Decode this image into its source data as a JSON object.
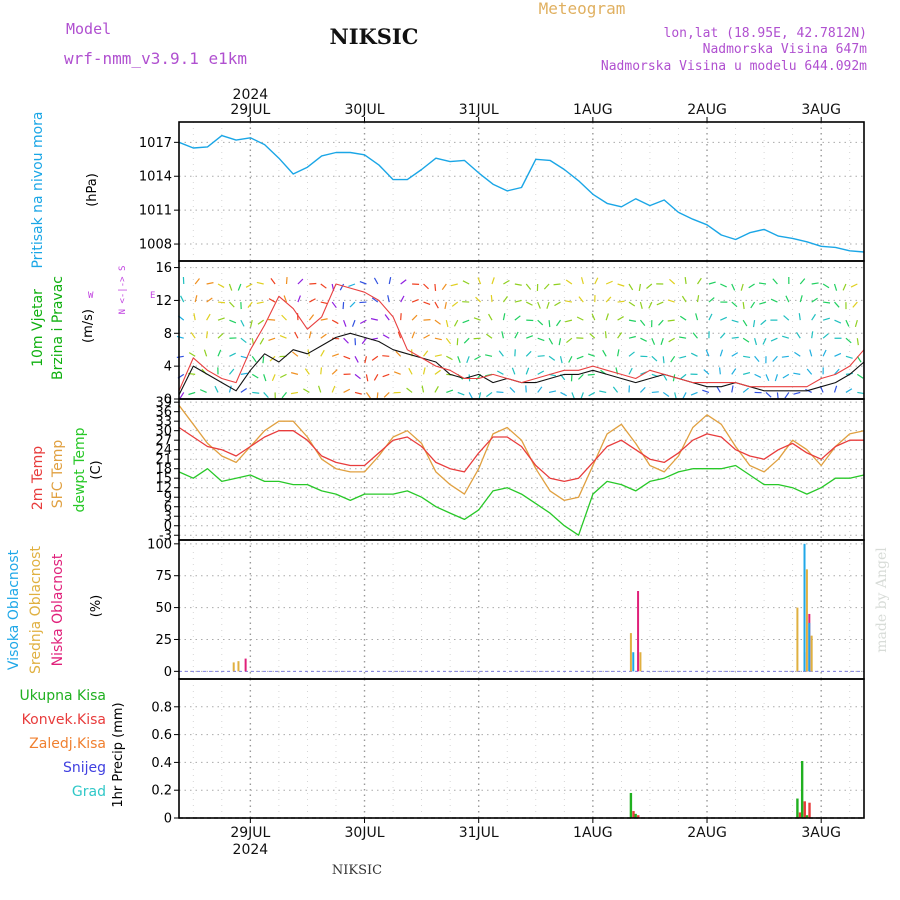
{
  "header": {
    "model_label": "Model",
    "model_name": "wrf-nmm_v3.9.1  e1km",
    "title": "NIKSIC",
    "meteogram_label": "Meteogram",
    "lonlat": "lon,lat (18.95E, 42.7812N)",
    "elevation": "Nadmorska Visina 647m",
    "model_elevation": "Nadmorska Visina u modelu 644.092m"
  },
  "footer": {
    "station": "NIKSIC",
    "credit": "made by Angel"
  },
  "time_axis": {
    "year": "2024",
    "days": [
      "29JUL",
      "30JUL",
      "31JUL",
      "1AUG",
      "2AUG",
      "3AUG"
    ],
    "range_hours": [
      -15,
      129
    ]
  },
  "colors": {
    "pressure": "#1aa6e6",
    "temp2m": "#e83c3c",
    "sfc_temp": "#e0a040",
    "dewpoint": "#28c828",
    "cloud_high": "#20a8e8",
    "cloud_mid": "#e0b040",
    "cloud_low": "#e0207a",
    "precip_total": "#20b020",
    "precip_conv": "#e83c3c",
    "precip_strat": "#f08030",
    "snow": "#4040e0",
    "graupel": "#30c8c8",
    "wind_label": "#10b010",
    "wind_dir_label": "#c040e0"
  },
  "panels": {
    "pressure": {
      "label": "Pritisak na nivou mora",
      "unit": "(hPa)",
      "ticks": [
        "1017",
        "1014",
        "1011",
        "1008"
      ]
    },
    "wind": {
      "label1": "10m Vjetar",
      "label2": "Brzina i Pravac",
      "unit": "(m/s)",
      "ticks": [
        "0",
        "4",
        "8",
        "12",
        "16"
      ],
      "compass_n": "N",
      "compass_s": "S",
      "compass_e": "E",
      "compass_w": "W"
    },
    "temperature": {
      "label_2m": "2m Temp",
      "label_sfc": "SFC Temp",
      "label_dew": "dewpt Temp",
      "unit": "(C)",
      "ticks": [
        "-3",
        "0",
        "3",
        "6",
        "9",
        "12",
        "15",
        "18",
        "21",
        "24",
        "27",
        "30",
        "33",
        "36",
        "39"
      ]
    },
    "clouds": {
      "label_high": "Visoka Oblacnost",
      "label_mid": "Srednja Oblacnost",
      "label_low": "Niska Oblacnost",
      "unit": "(%)",
      "ticks": [
        "0",
        "25",
        "50",
        "75",
        "100"
      ]
    },
    "precip": {
      "legend": [
        "Ukupna Kisa",
        "Konvek.Kisa",
        "Zaledj.Kisa",
        "Snijeg",
        "Grad"
      ],
      "unit": "1hr Precip (mm)",
      "ticks": [
        "0",
        "0.2",
        "0.4",
        "0.6",
        "0.8"
      ]
    }
  },
  "chart_data": [
    {
      "type": "line",
      "name": "pressure",
      "x": [
        -15,
        -12,
        -9,
        -6,
        -3,
        0,
        3,
        6,
        9,
        12,
        15,
        18,
        21,
        24,
        27,
        30,
        33,
        36,
        39,
        42,
        45,
        48,
        51,
        54,
        57,
        60,
        63,
        66,
        69,
        72,
        75,
        78,
        81,
        84,
        87,
        90,
        93,
        96,
        99,
        102,
        105,
        108,
        111,
        114,
        117,
        120,
        123,
        126,
        129
      ],
      "series": [
        {
          "values": [
            1017.0,
            1016.5,
            1016.6,
            1017.6,
            1017.2,
            1017.4,
            1016.8,
            1015.6,
            1014.2,
            1014.8,
            1015.8,
            1016.1,
            1016.1,
            1015.9,
            1015.0,
            1013.7,
            1013.7,
            1014.6,
            1015.6,
            1015.3,
            1015.4,
            1014.3,
            1013.3,
            1012.7,
            1013.0,
            1015.5,
            1015.4,
            1014.6,
            1013.6,
            1012.4,
            1011.6,
            1011.3,
            1012.0,
            1011.4,
            1011.9,
            1010.8,
            1010.2,
            1009.7,
            1008.8,
            1008.4,
            1009.0,
            1009.3,
            1008.7,
            1008.5,
            1008.2,
            1007.8,
            1007.7,
            1007.4,
            1007.3
          ]
        }
      ],
      "ylim": [
        1006.5,
        1018.8
      ]
    },
    {
      "type": "line",
      "name": "wind",
      "x": [
        -15,
        -12,
        -9,
        -6,
        -3,
        0,
        3,
        6,
        9,
        12,
        15,
        18,
        21,
        24,
        27,
        30,
        33,
        36,
        39,
        42,
        45,
        48,
        51,
        54,
        57,
        60,
        63,
        66,
        69,
        72,
        75,
        78,
        81,
        84,
        87,
        90,
        93,
        96,
        99,
        102,
        105,
        108,
        111,
        114,
        117,
        120,
        123,
        126,
        129
      ],
      "series": [
        {
          "name": "speed",
          "values": [
            0.5,
            4.0,
            3.0,
            2.0,
            1.0,
            3.5,
            5.5,
            4.5,
            6.0,
            5.5,
            6.5,
            7.5,
            8.0,
            7.5,
            7.0,
            6.0,
            5.5,
            5.0,
            4.5,
            3.0,
            2.5,
            3.0,
            2.0,
            2.5,
            2.0,
            2.0,
            2.5,
            3.0,
            3.0,
            3.5,
            3.0,
            2.5,
            2.0,
            2.5,
            3.0,
            2.5,
            2.0,
            1.5,
            1.5,
            2.0,
            1.5,
            1.0,
            1.0,
            1.0,
            1.0,
            1.5,
            2.0,
            3.0,
            4.5
          ]
        },
        {
          "name": "gust",
          "values": [
            1.0,
            5.0,
            3.5,
            2.5,
            2.0,
            6.0,
            9.0,
            12.5,
            11.0,
            8.5,
            10.0,
            14.0,
            13.5,
            13.0,
            12.0,
            10.0,
            6.0,
            5.0,
            4.0,
            3.5,
            2.5,
            2.5,
            3.0,
            2.5,
            2.0,
            2.5,
            3.0,
            3.5,
            3.5,
            4.0,
            3.5,
            3.0,
            2.5,
            3.5,
            3.0,
            2.5,
            2.0,
            2.0,
            2.0,
            2.0,
            1.5,
            1.5,
            1.5,
            1.5,
            1.5,
            2.5,
            3.0,
            4.0,
            6.0
          ]
        }
      ],
      "ylim": [
        0,
        16.8
      ]
    },
    {
      "type": "line",
      "name": "temperature",
      "x": [
        -15,
        -12,
        -9,
        -6,
        -3,
        0,
        3,
        6,
        9,
        12,
        15,
        18,
        21,
        24,
        27,
        30,
        33,
        36,
        39,
        42,
        45,
        48,
        51,
        54,
        57,
        60,
        63,
        66,
        69,
        72,
        75,
        78,
        81,
        84,
        87,
        90,
        93,
        96,
        99,
        102,
        105,
        108,
        111,
        114,
        117,
        120,
        123,
        126,
        129
      ],
      "series": [
        {
          "name": "2m Temp",
          "values": [
            31,
            28,
            25,
            24,
            22,
            25,
            28,
            30,
            30,
            27,
            22,
            20,
            19,
            19,
            23,
            27,
            28,
            25,
            20,
            18,
            17,
            23,
            28,
            28,
            25,
            19,
            15,
            14,
            15,
            20,
            25,
            27,
            24,
            21,
            20,
            23,
            27,
            29,
            28,
            24,
            22,
            21,
            24,
            26,
            23,
            21,
            25,
            27,
            27
          ]
        },
        {
          "name": "SFC Temp",
          "values": [
            38,
            32,
            26,
            22,
            20,
            25,
            30,
            33,
            33,
            28,
            21,
            18,
            17,
            17,
            22,
            28,
            30,
            26,
            17,
            13,
            10,
            18,
            29,
            31,
            27,
            18,
            11,
            8,
            9,
            19,
            29,
            32,
            26,
            19,
            17,
            22,
            31,
            35,
            32,
            25,
            19,
            17,
            21,
            27,
            24,
            19,
            25,
            29,
            30
          ]
        },
        {
          "name": "dewpt Temp",
          "values": [
            17,
            15,
            18,
            14,
            15,
            16,
            14,
            14,
            13,
            13,
            11,
            10,
            8,
            10,
            10,
            10,
            11,
            9,
            6,
            4,
            2,
            5,
            11,
            12,
            10,
            7,
            4,
            0,
            -3,
            10,
            14,
            13,
            11,
            14,
            15,
            17,
            18,
            18,
            18,
            19,
            16,
            13,
            13,
            12,
            10,
            12,
            15,
            15,
            16
          ]
        }
      ],
      "ylim": [
        -4.5,
        40
      ]
    },
    {
      "type": "bar",
      "name": "clouds",
      "x": [
        -3.5,
        -2.5,
        -1.5,
        80,
        81,
        82,
        115,
        116,
        117,
        118
      ],
      "series": [
        {
          "name": "Visoka Oblacnost",
          "values": [
            0,
            0,
            0,
            0,
            15,
            0,
            0,
            0,
            100,
            38
          ]
        },
        {
          "name": "Srednja Oblacnost",
          "values": [
            7,
            8,
            0,
            30,
            0,
            15,
            50,
            0,
            80,
            28
          ]
        },
        {
          "name": "Niska Oblacnost",
          "values": [
            0,
            0,
            10,
            0,
            63,
            0,
            0,
            15,
            45,
            0
          ]
        }
      ],
      "ylim": [
        -6,
        103
      ]
    },
    {
      "type": "bar",
      "name": "precip",
      "x": [
        80,
        81,
        115,
        116,
        117
      ],
      "series": [
        {
          "name": "Ukupna Kisa",
          "values": [
            0.18,
            0.03,
            0.14,
            0.41,
            0.02
          ]
        },
        {
          "name": "Konvek.Kisa",
          "values": [
            0.05,
            0.02,
            0.04,
            0.12,
            0.11
          ]
        }
      ],
      "ylim": [
        0,
        1.0
      ]
    }
  ]
}
